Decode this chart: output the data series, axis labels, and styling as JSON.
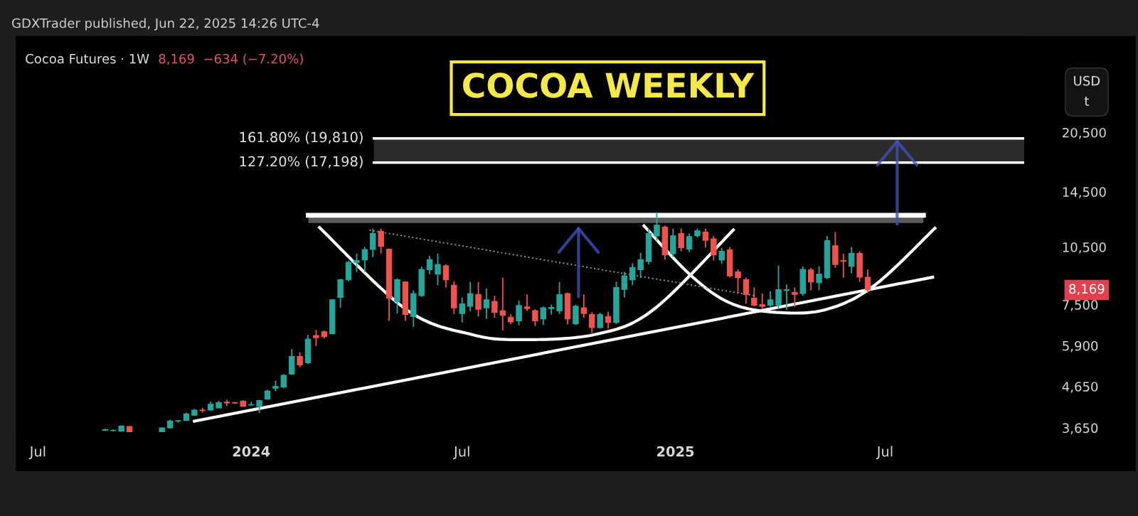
{
  "chart_data": {
    "type": "candlestick",
    "title": "COCOA WEEKLY",
    "subtitle": "Cocoa Futures · 1W",
    "ylabel": "USD\nt",
    "annotations": [
      "GDXTrader published, Jun 22, 2025 14:26 UTC-4",
      "8,169  −634 (−7.20%)",
      "8,169"
    ],
    "x": [
      "2023-08-28",
      "2023-09-04",
      "2023-09-11",
      "2023-09-18",
      "2023-10-16",
      "2023-10-23",
      "2023-10-30",
      "2023-11-06",
      "2023-11-13",
      "2023-11-20",
      "2023-11-27",
      "2023-12-04",
      "2023-12-11",
      "2023-12-18",
      "2023-12-25",
      "2024-01-01",
      "2024-01-08",
      "2024-01-15",
      "2024-01-22",
      "2024-01-29",
      "2024-02-05",
      "2024-02-12",
      "2024-02-19",
      "2024-02-26",
      "2024-03-04",
      "2024-03-11",
      "2024-03-18",
      "2024-03-25",
      "2024-04-01",
      "2024-04-08",
      "2024-04-15",
      "2024-04-22",
      "2024-04-29",
      "2024-05-06",
      "2024-05-13",
      "2024-05-20",
      "2024-05-27",
      "2024-06-03",
      "2024-06-10",
      "2024-06-17",
      "2024-06-24",
      "2024-07-01",
      "2024-07-08",
      "2024-07-15",
      "2024-07-22",
      "2024-07-29",
      "2024-08-05",
      "2024-08-12",
      "2024-08-19",
      "2024-08-26",
      "2024-09-02",
      "2024-09-09",
      "2024-09-16",
      "2024-09-23",
      "2024-09-30",
      "2024-10-07",
      "2024-10-14",
      "2024-10-21",
      "2024-10-28",
      "2024-11-04",
      "2024-11-11",
      "2024-11-18",
      "2024-11-25",
      "2024-12-02",
      "2024-12-09",
      "2024-12-16",
      "2024-12-23",
      "2024-12-30",
      "2025-01-06",
      "2025-01-13",
      "2025-01-20",
      "2025-01-27",
      "2025-02-03",
      "2025-02-10",
      "2025-02-17",
      "2025-02-24",
      "2025-03-03",
      "2025-03-10",
      "2025-03-17",
      "2025-03-24",
      "2025-03-31",
      "2025-04-07",
      "2025-04-14",
      "2025-04-21",
      "2025-04-28",
      "2025-05-05",
      "2025-05-12",
      "2025-05-19",
      "2025-05-26",
      "2025-06-02",
      "2025-06-09",
      "2025-06-16"
    ],
    "ohlc": [
      [
        3600,
        3630,
        3585,
        3610
      ],
      [
        3590,
        3620,
        3580,
        3595
      ],
      [
        3580,
        3700,
        3570,
        3690
      ],
      [
        3680,
        3690,
        3566,
        3570
      ],
      [
        3570,
        3660,
        3566,
        3650
      ],
      [
        3650,
        3830,
        3640,
        3800
      ],
      [
        3800,
        3820,
        3760,
        3810
      ],
      [
        3810,
        3990,
        3800,
        3960
      ],
      [
        3930,
        4080,
        3920,
        4050
      ],
      [
        4050,
        4100,
        3990,
        4040
      ],
      [
        4050,
        4260,
        4030,
        4190
      ],
      [
        4100,
        4280,
        4090,
        4230
      ],
      [
        4240,
        4300,
        4150,
        4220
      ],
      [
        4230,
        4250,
        4200,
        4220
      ],
      [
        4270,
        4290,
        4130,
        4140
      ],
      [
        4170,
        4250,
        4160,
        4180
      ],
      [
        4140,
        4300,
        3980,
        4280
      ],
      [
        4320,
        4560,
        4300,
        4530
      ],
      [
        4600,
        4810,
        4520,
        4650
      ],
      [
        4630,
        5000,
        4600,
        4960
      ],
      [
        5000,
        5780,
        4980,
        5540
      ],
      [
        5540,
        5680,
        5200,
        5275
      ],
      [
        5340,
        6280,
        5300,
        6130
      ],
      [
        6260,
        6470,
        5890,
        6180
      ],
      [
        6400,
        6450,
        6150,
        6220
      ],
      [
        6330,
        7750,
        6300,
        7710
      ],
      [
        7820,
        8720,
        7360,
        8670
      ],
      [
        8670,
        9700,
        8600,
        9600
      ],
      [
        9600,
        10110,
        9080,
        9700
      ],
      [
        9740,
        10500,
        9080,
        10350
      ],
      [
        10350,
        11700,
        9900,
        11360
      ],
      [
        11500,
        11700,
        10110,
        10540
      ],
      [
        10370,
        10400,
        6820,
        7790
      ],
      [
        7640,
        8750,
        7120,
        8670
      ],
      [
        8560,
        8600,
        6820,
        7080
      ],
      [
        7000,
        8150,
        6580,
        8000
      ],
      [
        7900,
        9380,
        7850,
        9210
      ],
      [
        9200,
        9980,
        8960,
        9750
      ],
      [
        8960,
        10110,
        8400,
        9480
      ],
      [
        9410,
        9500,
        8290,
        8670
      ],
      [
        8400,
        8590,
        7100,
        7360
      ],
      [
        7120,
        7820,
        6760,
        7530
      ],
      [
        7430,
        8560,
        7210,
        8000
      ],
      [
        7960,
        8560,
        7000,
        7300
      ],
      [
        7360,
        8240,
        6900,
        7710
      ],
      [
        7640,
        7900,
        6950,
        7170
      ],
      [
        7230,
        8780,
        6450,
        7050
      ],
      [
        6970,
        7100,
        6680,
        6780
      ],
      [
        6820,
        7680,
        6650,
        7460
      ],
      [
        7400,
        7960,
        7230,
        7330
      ],
      [
        7240,
        7300,
        6620,
        6820
      ],
      [
        6900,
        7420,
        6660,
        7360
      ],
      [
        7330,
        7500,
        7070,
        7380
      ],
      [
        7230,
        8560,
        7100,
        7960
      ],
      [
        8000,
        8050,
        6680,
        6900
      ],
      [
        6700,
        7500,
        6660,
        7430
      ],
      [
        7360,
        7960,
        6950,
        7120
      ],
      [
        7080,
        7180,
        6360,
        6560
      ],
      [
        6560,
        7150,
        6520,
        7080
      ],
      [
        7000,
        7190,
        6520,
        6760
      ],
      [
        6760,
        8580,
        6700,
        8290
      ],
      [
        8200,
        9080,
        7820,
        8870
      ],
      [
        8670,
        9550,
        8400,
        9320
      ],
      [
        9200,
        10150,
        8760,
        9750
      ],
      [
        9650,
        11700,
        9500,
        11360
      ],
      [
        11200,
        12860,
        10900,
        11930
      ],
      [
        11800,
        11900,
        9750,
        10030
      ],
      [
        10100,
        11700,
        9900,
        11210
      ],
      [
        11360,
        11700,
        10240,
        10460
      ],
      [
        10370,
        11360,
        10200,
        11160
      ],
      [
        11210,
        11700,
        11100,
        11540
      ],
      [
        11460,
        11700,
        10460,
        10920
      ],
      [
        11010,
        11210,
        9700,
        10030
      ],
      [
        9740,
        10450,
        9520,
        10240
      ],
      [
        10330,
        10500,
        8800,
        8870
      ],
      [
        9080,
        9210,
        8000,
        8780
      ],
      [
        8670,
        8780,
        7540,
        7960
      ],
      [
        7790,
        8290,
        7430,
        7470
      ],
      [
        7500,
        8000,
        7300,
        7430
      ],
      [
        7470,
        8110,
        7400,
        7710
      ],
      [
        7470,
        9420,
        7300,
        8180
      ],
      [
        8150,
        8440,
        7270,
        8180
      ],
      [
        8050,
        8290,
        7400,
        7960
      ],
      [
        8000,
        9380,
        7900,
        9210
      ],
      [
        9180,
        9300,
        8150,
        8560
      ],
      [
        8530,
        9380,
        8150,
        8960
      ],
      [
        8780,
        11200,
        8700,
        10900
      ],
      [
        10580,
        11460,
        9300,
        9480
      ],
      [
        9700,
        10110,
        8780,
        9660
      ],
      [
        9380,
        10500,
        9000,
        10110
      ],
      [
        10110,
        10240,
        8560,
        8803
      ],
      [
        8800,
        9210,
        8030,
        8169
      ]
    ],
    "colors": [
      "#26a69a",
      "#26a69a",
      "#26a69a",
      "#ef5350",
      "#26a69a",
      "#26a69a",
      "#26a69a",
      "#26a69a",
      "#26a69a",
      "#ef5350",
      "#26a69a",
      "#26a69a",
      "#ef5350",
      "#ef5350",
      "#ef5350",
      "#26a69a",
      "#26a69a",
      "#26a69a",
      "#26a69a",
      "#26a69a",
      "#26a69a",
      "#ef5350",
      "#26a69a",
      "#ef5350",
      "#ef5350",
      "#26a69a",
      "#26a69a",
      "#26a69a",
      "#26a69a",
      "#26a69a",
      "#26a69a",
      "#ef5350",
      "#ef5350",
      "#26a69a",
      "#ef5350",
      "#26a69a",
      "#26a69a",
      "#26a69a",
      "#26a69a",
      "#ef5350",
      "#ef5350",
      "#26a69a",
      "#26a69a",
      "#ef5350",
      "#26a69a",
      "#ef5350",
      "#ef5350",
      "#ef5350",
      "#26a69a",
      "#ef5350",
      "#ef5350",
      "#26a69a",
      "#26a69a",
      "#26a69a",
      "#ef5350",
      "#26a69a",
      "#ef5350",
      "#ef5350",
      "#26a69a",
      "#ef5350",
      "#26a69a",
      "#26a69a",
      "#26a69a",
      "#26a69a",
      "#26a69a",
      "#26a69a",
      "#ef5350",
      "#26a69a",
      "#ef5350",
      "#26a69a",
      "#26a69a",
      "#ef5350",
      "#ef5350",
      "#26a69a",
      "#ef5350",
      "#ef5350",
      "#ef5350",
      "#ef5350",
      "#ef5350",
      "#26a69a",
      "#26a69a",
      "#26a69a",
      "#ef5350",
      "#26a69a",
      "#ef5350",
      "#26a69a",
      "#26a69a",
      "#ef5350",
      "#ef5350",
      "#26a69a",
      "#ef5350",
      "#ef5350"
    ],
    "series": [
      {
        "type": "line",
        "color": "#ffffff",
        "x": [
          "2023-11-13",
          "2025-08-11"
        ],
        "values": [
          3795,
          8802
        ]
      },
      {
        "type": "line",
        "color": "#ffffff",
        "x": [
          "2024-02-29",
          "2024-05-14",
          "2024-07-09",
          "2024-08-21",
          "2024-10-24",
          "2024-12-13",
          "2025-02-20"
        ],
        "values": [
          11760,
          7280,
          6300,
          6110,
          6300,
          7280,
          11600
        ]
      },
      {
        "type": "line",
        "color": "#ffffff",
        "x": [
          "2024-12-05",
          "2025-01-15",
          "2025-02-19",
          "2025-04-01",
          "2025-05-12",
          "2025-06-22",
          "2025-08-13"
        ],
        "values": [
          11880,
          8860,
          7535,
          7160,
          7300,
          8400,
          11720
        ]
      },
      {
        "type": "line",
        "color": "#8a8a8a",
        "line_style": "dotted",
        "x": [
          "2024-04-12",
          "2025-03-10"
        ],
        "values": [
          11590,
          7900
        ]
      }
    ],
    "ref_lines": [
      {
        "axis": "y",
        "value": 19810,
        "label": "161.80% (19,810)",
        "color": "#ffffff"
      },
      {
        "axis": "y",
        "value": 17198,
        "label": "127.20% (17,198)",
        "color": "#ffffff"
      },
      {
        "axis": "y",
        "value": 12640,
        "color": "#ffffff"
      }
    ],
    "bands": [
      {
        "axis": "y",
        "from": 17198,
        "to": 19810,
        "color": "#2b2b2b"
      },
      {
        "axis": "y",
        "from": 12080,
        "to": 12640,
        "color": "#5a5a5a"
      }
    ],
    "log": true,
    "ylim": [
      3560,
      36000
    ],
    "yticks": [
      {
        "value": 3650,
        "label": "3,650"
      },
      {
        "value": 4650,
        "label": "4,650"
      },
      {
        "value": 5900,
        "label": "5,900"
      },
      {
        "value": 7500,
        "label": "7,500"
      },
      {
        "value": 10500,
        "label": "10,500"
      },
      {
        "value": 14500,
        "label": "14,500"
      },
      {
        "value": 20500,
        "label": "20,500"
      }
    ],
    "xlim": [
      "2023-06-12",
      "2025-10-29"
    ],
    "xticks": [
      {
        "value": "2023-07-01",
        "label": "Jul"
      },
      {
        "value": "2024-01-01",
        "label": "2024"
      },
      {
        "value": "2024-07-01",
        "label": "Jul"
      },
      {
        "value": "2025-01-01",
        "label": "2025"
      },
      {
        "value": "2025-07-01",
        "label": "Jul"
      }
    ],
    "grid": false
  }
}
